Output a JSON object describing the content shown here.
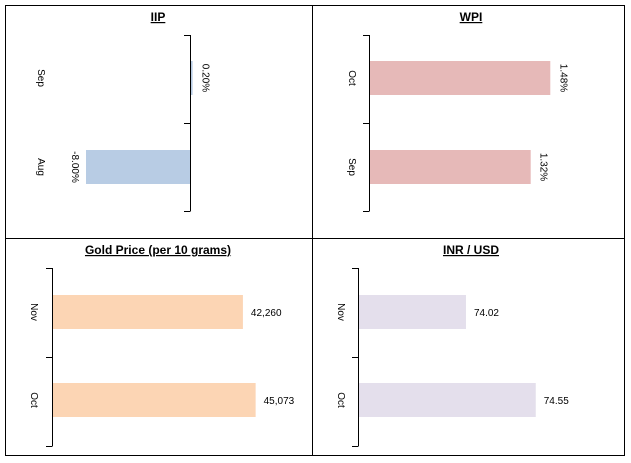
{
  "chart_data": [
    {
      "type": "bar",
      "title": "IIP",
      "categories": [
        "Sep",
        "Aug"
      ],
      "values": [
        0.2,
        -8.0
      ],
      "value_labels": [
        "0.20%",
        "-8.00%"
      ],
      "xlim": [
        -10,
        10
      ],
      "color": "#b8cce4",
      "label_rotation": "90deg",
      "grid": false,
      "legend": "none"
    },
    {
      "type": "bar",
      "title": "WPI",
      "categories": [
        "Oct",
        "Sep"
      ],
      "values": [
        1.48,
        1.32
      ],
      "value_labels": [
        "1.48%",
        "1.32%"
      ],
      "xlim": [
        0,
        1.6
      ],
      "color": "#e6b9b8",
      "label_rotation": "90deg",
      "grid": false,
      "legend": "none"
    },
    {
      "type": "bar",
      "title": "Gold Price (per 10 grams)",
      "categories": [
        "Nov",
        "Oct"
      ],
      "values": [
        42260,
        45073
      ],
      "value_labels": [
        "42,260",
        "45,073"
      ],
      "xlim": [
        0,
        56000
      ],
      "color": "#fcd5b4",
      "label_rotation": "0deg",
      "grid": false,
      "legend": "none"
    },
    {
      "type": "bar",
      "title": "INR / USD",
      "categories": [
        "Nov",
        "Oct"
      ],
      "values": [
        74.02,
        74.55
      ],
      "value_labels": [
        "74.02",
        "74.55"
      ],
      "xlim": [
        73.2,
        75.0
      ],
      "color": "#e4dfec",
      "label_rotation": "0deg",
      "grid": false,
      "legend": "none"
    }
  ]
}
